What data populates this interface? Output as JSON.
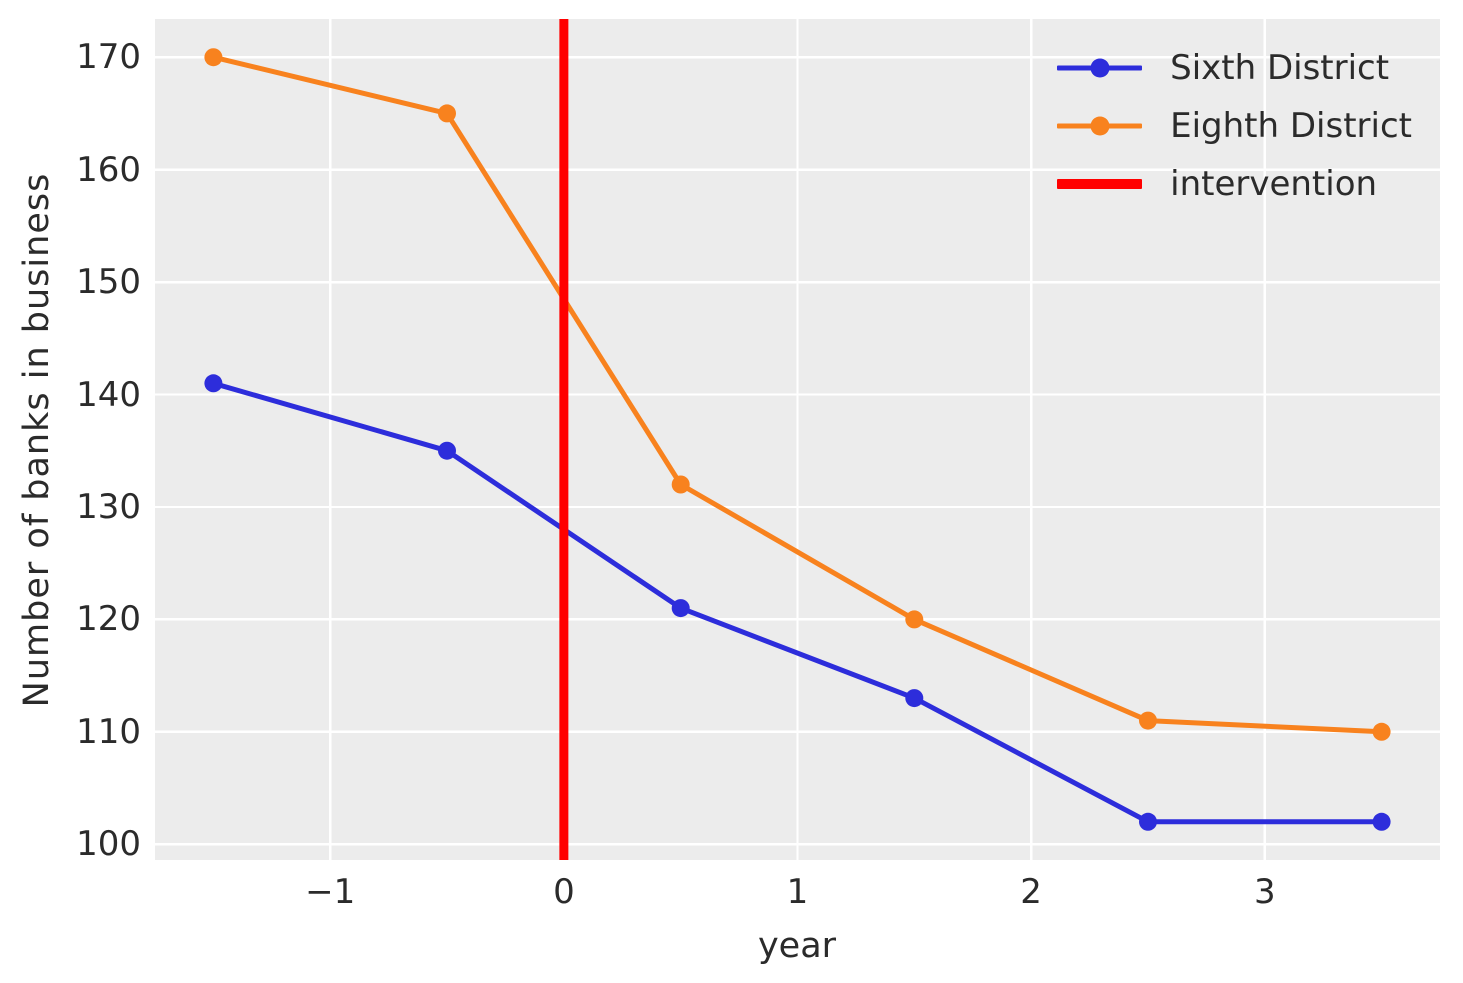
{
  "figure": {
    "type": "matplotlib-line-chart",
    "title": ""
  },
  "legend": {
    "position": "upper right",
    "items": [
      {
        "label": "Sixth District",
        "color": "#2d2ddb",
        "swatch": "line-marker"
      },
      {
        "label": "Eighth District",
        "color": "#f8821e",
        "swatch": "line-marker"
      },
      {
        "label": "intervention",
        "color": "#ff0000",
        "swatch": "thick-line"
      }
    ]
  },
  "chart_data": {
    "type": "line",
    "title": "",
    "xlabel": "year",
    "ylabel": "Number of banks in business",
    "x": [
      -1.5,
      -0.5,
      0.5,
      1.5,
      2.5,
      3.5
    ],
    "series": [
      {
        "name": "Sixth District",
        "color": "#2d2ddb",
        "values": [
          141,
          135,
          121,
          113,
          102,
          102
        ]
      },
      {
        "name": "Eighth District",
        "color": "#f8821e",
        "values": [
          170,
          165,
          132,
          120,
          111,
          110
        ]
      }
    ],
    "intervention": {
      "x": 0,
      "color": "#ff0000",
      "label": "intervention"
    },
    "xlim": [
      -1.75,
      3.75
    ],
    "ylim": [
      98.6,
      173.4
    ],
    "xticks": [
      -1,
      0,
      1,
      2,
      3
    ],
    "yticks": [
      100,
      110,
      120,
      130,
      140,
      150,
      160,
      170
    ],
    "grid": true,
    "legend_position": "upper right",
    "style": {
      "axes_background": "#ececec",
      "grid_color": "#ffffff",
      "text_color": "#2b2b2b",
      "line_width": 5,
      "marker_radius": 9,
      "intervention_line_width": 9
    }
  }
}
